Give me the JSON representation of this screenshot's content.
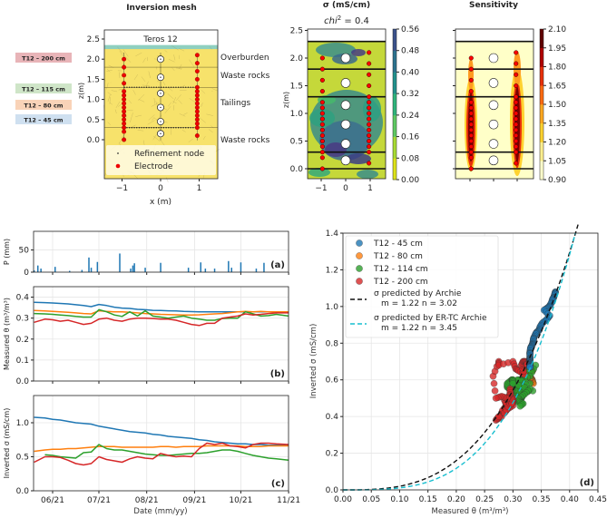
{
  "chart_data": [
    {
      "type": "diagram",
      "panel": "mesh",
      "title": "Inversion mesh",
      "sensor_label": "Teros 12",
      "xlabel": "x (m)",
      "ylabel": "z(m)",
      "xticks": [
        "−1",
        "0",
        "1"
      ],
      "yticks": [
        "0.0",
        "0.5",
        "1.0",
        "1.5",
        "2.0",
        "2.5"
      ],
      "layers": [
        "Overburden",
        "Waste rocks",
        "Tailings",
        "Waste rocks"
      ],
      "layer_boundaries_z": [
        2.3,
        1.8,
        1.3,
        0.3,
        0.0
      ],
      "sensor_tags": [
        {
          "label": "T12 – 200 cm",
          "color": "#e8b4b8"
        },
        {
          "label": "T12 – 115 cm",
          "color": "#cfe5c8"
        },
        {
          "label": "T12 – 80 cm",
          "color": "#f9d3b8"
        },
        {
          "label": "T12 – 45 cm",
          "color": "#cfe0f0"
        }
      ],
      "legend": [
        "Refinement node",
        "Electrode"
      ],
      "electrodes_left": {
        "x": -0.95,
        "z": [
          2.0,
          1.8,
          1.6,
          1.4,
          1.2,
          1.1,
          1.0,
          0.9,
          0.8,
          0.7,
          0.6,
          0.5,
          0.4,
          0.3,
          0.2,
          0.0
        ]
      },
      "electrodes_right": {
        "x": 0.95,
        "z": [
          2.1,
          1.9,
          1.7,
          1.5,
          1.3,
          1.2,
          1.1,
          1.0,
          0.9,
          0.8,
          0.7,
          0.6,
          0.5,
          0.4,
          0.3,
          0.1
        ]
      },
      "sensors_z": [
        2.0,
        1.55,
        1.15,
        0.8,
        0.45,
        0.15
      ]
    },
    {
      "type": "heatmap",
      "panel": "conductivity",
      "title": "σ (mS/cm)",
      "subtitle_prefix": "chi",
      "subtitle_sup": "2",
      "subtitle_value": " =  0.4",
      "xticks": [
        "−1",
        "0",
        "1"
      ],
      "yticks": [
        "0.0",
        "0.5",
        "1.0",
        "1.5",
        "2.0",
        "2.5"
      ],
      "ylabel": "z(m)",
      "colorbar_ticks": [
        "0.00",
        "0.08",
        "0.16",
        "0.24",
        "0.32",
        "0.40",
        "0.48",
        "0.56"
      ],
      "clim": [
        0,
        0.56
      ]
    },
    {
      "type": "heatmap",
      "panel": "sensitivity",
      "title": "Sensitivity",
      "colorbar_ticks": [
        "0.90",
        "1.05",
        "1.20",
        "1.35",
        "1.50",
        "1.65",
        "1.80",
        "1.95",
        "2.10"
      ],
      "clim": [
        0.9,
        2.1
      ]
    },
    {
      "type": "bar",
      "panel": "a",
      "panel_label": "(a)",
      "ylabel": "P (mm)",
      "yticks": [
        "0",
        "50"
      ],
      "ylim": [
        0,
        92
      ],
      "x_unit": "days since 06/21",
      "days": [
        -12,
        -9.6,
        -7.6,
        1.6,
        11,
        19,
        23.5,
        25,
        29,
        43.5,
        50.6,
        52,
        53,
        60,
        70,
        88,
        96,
        99,
        105,
        114,
        116,
        122,
        132,
        137
      ],
      "values": [
        4,
        15,
        8,
        12,
        3,
        5,
        33,
        10,
        23,
        42,
        8,
        15,
        20,
        10,
        21,
        10,
        22,
        8,
        8,
        25,
        10,
        22,
        8,
        21
      ]
    },
    {
      "type": "line",
      "panel": "b",
      "panel_label": "(b)",
      "ylabel": "Measured θ (m³/m³)",
      "yticks": [
        "0.0",
        "0.1",
        "0.2",
        "0.3",
        "0.4"
      ],
      "ylim": [
        0,
        0.45
      ],
      "x": [
        -12,
        -5,
        0,
        5,
        10,
        15,
        20,
        25,
        30,
        35,
        40,
        45,
        50,
        55,
        60,
        65,
        70,
        75,
        80,
        85,
        90,
        95,
        100,
        105,
        110,
        115,
        120,
        125,
        130,
        135,
        140,
        145,
        153
      ],
      "series": [
        {
          "name": "T12 - 45 cm",
          "color": "#1f77b4",
          "values": [
            0.375,
            0.374,
            0.372,
            0.37,
            0.368,
            0.364,
            0.36,
            0.355,
            0.365,
            0.36,
            0.352,
            0.348,
            0.346,
            0.342,
            0.34,
            0.337,
            0.336,
            0.335,
            0.334,
            0.332,
            0.331,
            0.33,
            0.33,
            0.33,
            0.33,
            0.33,
            0.33,
            0.33,
            0.33,
            0.33,
            0.33,
            0.33,
            0.33
          ]
        },
        {
          "name": "T12 - 80 cm",
          "color": "#ff7f0e",
          "values": [
            0.336,
            0.334,
            0.332,
            0.33,
            0.328,
            0.325,
            0.322,
            0.32,
            0.335,
            0.332,
            0.33,
            0.33,
            0.328,
            0.325,
            0.322,
            0.32,
            0.318,
            0.317,
            0.316,
            0.315,
            0.315,
            0.316,
            0.318,
            0.32,
            0.322,
            0.326,
            0.33,
            0.332,
            0.33,
            0.332,
            0.33,
            0.33,
            0.33
          ]
        },
        {
          "name": "T12 - 114 cm",
          "color": "#2ca02c",
          "values": [
            0.322,
            0.32,
            0.318,
            0.315,
            0.312,
            0.308,
            0.305,
            0.305,
            0.34,
            0.33,
            0.315,
            0.308,
            0.33,
            0.31,
            0.335,
            0.31,
            0.305,
            0.3,
            0.305,
            0.31,
            0.3,
            0.295,
            0.29,
            0.29,
            0.298,
            0.3,
            0.3,
            0.33,
            0.32,
            0.31,
            0.312,
            0.318,
            0.31
          ]
        },
        {
          "name": "T12 - 200 cm",
          "color": "#d62728",
          "values": [
            0.28,
            0.295,
            0.292,
            0.285,
            0.29,
            0.28,
            0.27,
            0.275,
            0.295,
            0.3,
            0.29,
            0.285,
            0.295,
            0.3,
            0.3,
            0.298,
            0.295,
            0.295,
            0.29,
            0.28,
            0.27,
            0.265,
            0.275,
            0.275,
            0.3,
            0.305,
            0.31,
            0.32,
            0.315,
            0.318,
            0.322,
            0.325,
            0.325
          ]
        }
      ]
    },
    {
      "type": "line",
      "panel": "c",
      "panel_label": "(c)",
      "ylabel": "Inverted σ (mS/cm)",
      "xlabel": "Date (mm/yy)",
      "xticks": [
        "06/21",
        "07/21",
        "08/21",
        "09/21",
        "10/21",
        "11/21"
      ],
      "xtick_days": [
        0,
        30,
        61,
        92,
        122,
        153
      ],
      "yticks": [
        "0.0",
        "0.5",
        "1.0"
      ],
      "ylim": [
        0,
        1.4
      ],
      "x": [
        -12,
        -5,
        0,
        5,
        10,
        15,
        20,
        25,
        30,
        35,
        40,
        45,
        50,
        55,
        60,
        65,
        70,
        75,
        80,
        85,
        90,
        95,
        100,
        105,
        110,
        115,
        120,
        125,
        130,
        135,
        140,
        145,
        153
      ],
      "series": [
        {
          "name": "T12 - 45 cm",
          "color": "#1f77b4",
          "values": [
            1.08,
            1.07,
            1.05,
            1.04,
            1.02,
            1.0,
            0.99,
            0.98,
            0.95,
            0.93,
            0.91,
            0.89,
            0.87,
            0.86,
            0.85,
            0.83,
            0.82,
            0.8,
            0.79,
            0.78,
            0.77,
            0.75,
            0.74,
            0.72,
            0.71,
            0.7,
            0.69,
            0.69,
            0.68,
            0.68,
            0.67,
            0.67,
            0.67
          ]
        },
        {
          "name": "T12 - 80 cm",
          "color": "#ff7f0e",
          "values": [
            0.58,
            0.6,
            0.61,
            0.61,
            0.62,
            0.62,
            0.63,
            0.64,
            0.65,
            0.65,
            0.65,
            0.64,
            0.64,
            0.64,
            0.64,
            0.64,
            0.65,
            0.65,
            0.64,
            0.65,
            0.65,
            0.65,
            0.66,
            0.66,
            0.66,
            0.66,
            0.66,
            0.65,
            0.65,
            0.65,
            0.66,
            0.66,
            0.66
          ]
        },
        {
          "name": "T12 - 114 cm",
          "color": "#2ca02c",
          "values": [
            null,
            0.53,
            0.52,
            0.5,
            0.49,
            0.48,
            0.56,
            0.57,
            0.68,
            0.62,
            0.6,
            0.6,
            0.58,
            0.56,
            0.54,
            0.53,
            0.52,
            0.52,
            0.53,
            0.54,
            0.55,
            0.55,
            0.56,
            0.58,
            0.6,
            0.6,
            0.58,
            0.55,
            0.52,
            0.5,
            0.48,
            0.47,
            0.45
          ]
        },
        {
          "name": "T12 - 200 cm",
          "color": "#d62728",
          "values": [
            0.42,
            0.5,
            0.5,
            0.49,
            0.45,
            0.4,
            0.38,
            0.4,
            0.5,
            0.46,
            0.44,
            0.42,
            0.47,
            0.5,
            0.48,
            0.47,
            0.55,
            0.52,
            0.5,
            0.51,
            0.5,
            0.62,
            0.7,
            0.68,
            0.7,
            0.66,
            0.65,
            0.63,
            0.68,
            0.7,
            0.7,
            0.69,
            0.68
          ]
        }
      ]
    },
    {
      "type": "scatter",
      "panel": "d",
      "panel_label": "(d)",
      "xlabel": "Measured θ (m³/m³)",
      "ylabel": "Inverted σ (mS/cm)",
      "xticks": [
        "0.00",
        "0.05",
        "0.10",
        "0.15",
        "0.20",
        "0.25",
        "0.30",
        "0.35",
        "0.40",
        "0.45"
      ],
      "yticks": [
        "0.0",
        "0.2",
        "0.4",
        "0.6",
        "0.8",
        "1.0",
        "1.2",
        "1.4"
      ],
      "xlim": [
        0,
        0.45
      ],
      "ylim": [
        0,
        1.4
      ],
      "points_source": "pairs of panel (b) theta and panel (c) sigma per sensor",
      "legend": [
        {
          "label": "T12 - 45 cm",
          "color": "#1f77b4"
        },
        {
          "label": "T12 - 80 cm",
          "color": "#ff7f0e"
        },
        {
          "label": "T12 - 114 cm",
          "color": "#2ca02c"
        },
        {
          "label": "T12 - 200 cm",
          "color": "#d62728"
        }
      ],
      "fits": [
        {
          "label": "σ predicted by Archie",
          "params": "m = 1.22    n = 3.02",
          "color": "#111111",
          "n": 3.02,
          "prefactor": 20.6
        },
        {
          "label": "σ predicted by ER-TC Archie",
          "params": "m = 1.22    n = 3.45",
          "color": "#17becf",
          "n": 3.45,
          "prefactor": 30.3
        }
      ]
    }
  ]
}
